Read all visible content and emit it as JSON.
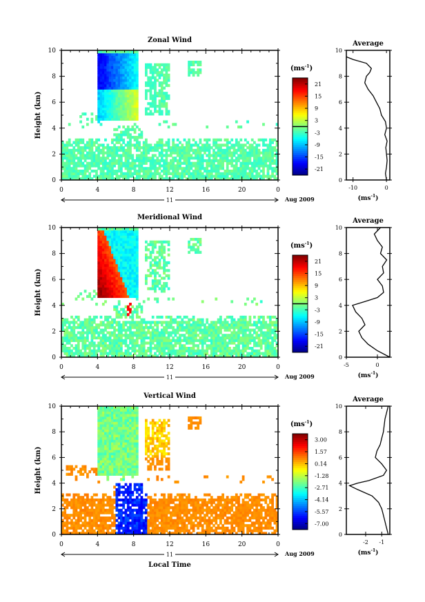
{
  "chart_data": [
    {
      "type": "heatmap",
      "title": "Zonal Wind",
      "ylabel": "Height (km)",
      "xticks": [
        "0",
        "4",
        "8",
        "12",
        "16",
        "20",
        "0"
      ],
      "yticks": [
        "0",
        "2",
        "4",
        "6",
        "8",
        "10"
      ],
      "xrange": [
        0,
        24
      ],
      "yrange": [
        0,
        10
      ],
      "date_day": "11",
      "date_label": "Aug 2009",
      "colorbar": {
        "unit_base": "(ms",
        "unit_exp": "-1",
        "unit_close": ")",
        "ticks": [
          "21",
          "15",
          "9",
          "3",
          "-3",
          "-9",
          "-15",
          "-21"
        ],
        "range": [
          -24,
          24
        ],
        "zero_line": 0
      },
      "avg": {
        "title": "Average",
        "unit_base": "(ms",
        "unit_exp": "-1",
        "unit_close": ")",
        "xticks": [
          "-10",
          "0"
        ],
        "xrange": [
          -12,
          1
        ],
        "yticks": [
          "0",
          "2",
          "4",
          "6",
          "8",
          "10"
        ],
        "profile": [
          [
            0,
            0
          ],
          [
            0.5,
            -0.3
          ],
          [
            1,
            0
          ],
          [
            1.5,
            0.2
          ],
          [
            2,
            0
          ],
          [
            2.5,
            -0.2
          ],
          [
            3,
            0.2
          ],
          [
            3.5,
            -0.5
          ],
          [
            4,
            0
          ],
          [
            4.5,
            -0.3
          ],
          [
            5,
            -1.5
          ],
          [
            5.5,
            -2
          ],
          [
            6,
            -3
          ],
          [
            6.5,
            -4
          ],
          [
            7,
            -5.5
          ],
          [
            7.5,
            -6.5
          ],
          [
            8,
            -6
          ],
          [
            8.3,
            -5
          ],
          [
            8.6,
            -4.5
          ],
          [
            9,
            -6
          ],
          [
            9.3,
            -10
          ],
          [
            9.5,
            -12
          ]
        ]
      }
    },
    {
      "type": "heatmap",
      "title": "Meridional Wind",
      "ylabel": "Height (km)",
      "xticks": [
        "0",
        "4",
        "8",
        "12",
        "16",
        "20",
        "0"
      ],
      "yticks": [
        "0",
        "2",
        "4",
        "6",
        "8",
        "10"
      ],
      "xrange": [
        0,
        24
      ],
      "yrange": [
        0,
        10
      ],
      "date_day": "11",
      "date_label": "Aug 2009",
      "colorbar": {
        "unit_base": "(ms",
        "unit_exp": "-1",
        "unit_close": ")",
        "ticks": [
          "21",
          "15",
          "9",
          "3",
          "-3",
          "-9",
          "-15",
          "-21"
        ],
        "range": [
          -24,
          24
        ],
        "zero_line": 0
      },
      "avg": {
        "title": "Average",
        "unit_base": "(ms",
        "unit_exp": "-1",
        "unit_close": ")",
        "xticks": [
          "-5",
          "0"
        ],
        "xrange": [
          -5,
          2
        ],
        "yticks": [
          "0",
          "2",
          "4",
          "6",
          "8",
          "10"
        ],
        "profile": [
          [
            0,
            2
          ],
          [
            0.5,
            0
          ],
          [
            1,
            -1.5
          ],
          [
            1.5,
            -2.5
          ],
          [
            2,
            -3
          ],
          [
            2.5,
            -2
          ],
          [
            3,
            -2.5
          ],
          [
            3.5,
            -3.5
          ],
          [
            4,
            -4
          ],
          [
            4.3,
            -2
          ],
          [
            4.6,
            0
          ],
          [
            5,
            1
          ],
          [
            5.5,
            0.8
          ],
          [
            6,
            0
          ],
          [
            6.5,
            1
          ],
          [
            7,
            0.8
          ],
          [
            7.5,
            1.5
          ],
          [
            8,
            0.5
          ],
          [
            8.5,
            0.8
          ],
          [
            9,
            0
          ],
          [
            9.5,
            -0.5
          ],
          [
            10,
            0.5
          ]
        ]
      }
    },
    {
      "type": "heatmap",
      "title": "Vertical Wind",
      "ylabel": "Height (km)",
      "xlabel": "Local Time",
      "xticks": [
        "0",
        "4",
        "8",
        "12",
        "16",
        "20",
        "0"
      ],
      "yticks": [
        "0",
        "2",
        "4",
        "6",
        "8",
        "10"
      ],
      "xrange": [
        0,
        24
      ],
      "yrange": [
        0,
        10
      ],
      "date_day": "11",
      "date_label": "Aug 2009",
      "colorbar": {
        "unit_base": "(ms",
        "unit_exp": "-1",
        "unit_close": ")",
        "ticks": [
          "3.00",
          "1.57",
          "0.14",
          "-1.28",
          "-2.71",
          "-4.14",
          "-5.57",
          "-7.00"
        ],
        "range": [
          -7.7,
          3.7
        ]
      },
      "avg": {
        "title": "Average",
        "unit_base": "(ms",
        "unit_exp": "-1",
        "unit_close": ")",
        "xticks": [
          "-2",
          "-1"
        ],
        "xrange": [
          -3.2,
          -0.5
        ],
        "yticks": [
          "0",
          "2",
          "4",
          "6",
          "8",
          "10"
        ],
        "profile": [
          [
            0,
            -0.6
          ],
          [
            0.5,
            -0.7
          ],
          [
            1,
            -0.8
          ],
          [
            1.5,
            -0.9
          ],
          [
            2,
            -1.0
          ],
          [
            2.5,
            -1.2
          ],
          [
            3,
            -1.6
          ],
          [
            3.5,
            -2.5
          ],
          [
            3.8,
            -3.0
          ],
          [
            4.0,
            -2.5
          ],
          [
            4.2,
            -1.8
          ],
          [
            4.6,
            -0.9
          ],
          [
            5,
            -0.7
          ],
          [
            5.5,
            -1.0
          ],
          [
            6,
            -1.4
          ],
          [
            6.5,
            -1.3
          ],
          [
            7,
            -1.1
          ],
          [
            7.5,
            -1.0
          ],
          [
            8,
            -0.9
          ],
          [
            9,
            -0.8
          ],
          [
            10,
            -0.6
          ]
        ]
      }
    }
  ]
}
